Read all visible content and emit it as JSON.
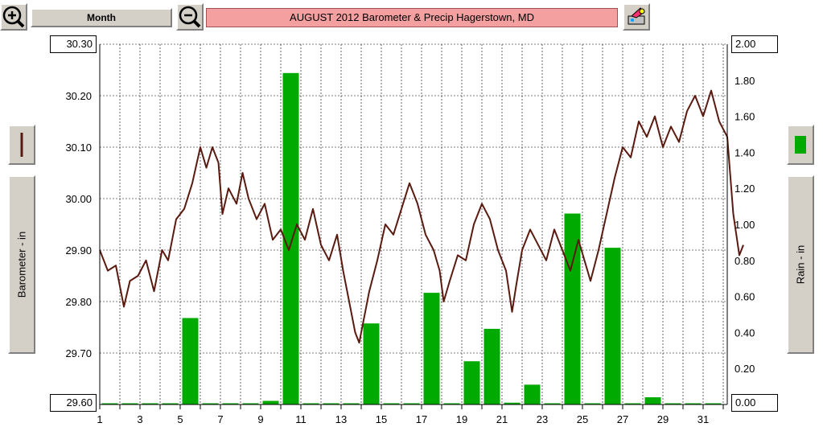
{
  "toolbar": {
    "zoom_in_icon": "zoom-in-icon",
    "zoom_out_icon": "zoom-out-icon",
    "period_label": "Month",
    "title": "AUGUST  2012   Barometer & Precip    Hagerstown, MD",
    "print_icon": "printer-icon"
  },
  "left_panel": {
    "label": "Barometer - in",
    "legend_color": "#5a1a10"
  },
  "right_panel": {
    "label": "Rain - in",
    "legend_color": "#00aa00"
  },
  "axis_boxes": {
    "left_top": "30.30",
    "left_bottom": "29.60",
    "right_top": "2.00",
    "right_bottom": "0.00"
  },
  "chart_data": {
    "type": "bar+line",
    "title": "AUGUST  2012   Barometer & Precip    Hagerstown, MD",
    "xlabel": "",
    "x_ticks": [
      "1",
      "3",
      "5",
      "7",
      "9",
      "11",
      "13",
      "15",
      "17",
      "19",
      "21",
      "23",
      "25",
      "27",
      "29",
      "31"
    ],
    "xlim": [
      1,
      32
    ],
    "left_axis": {
      "label": "Barometer - in",
      "ylim": [
        29.6,
        30.3
      ],
      "ticks": [
        "30.30",
        "30.20",
        "30.10",
        "30.00",
        "29.90",
        "29.80",
        "29.70",
        "29.60"
      ]
    },
    "right_axis": {
      "label": "Rain - in",
      "ylim": [
        0.0,
        2.0
      ],
      "ticks": [
        "2.00",
        "1.80",
        "1.60",
        "1.40",
        "1.20",
        "1.00",
        "0.80",
        "0.60",
        "0.40",
        "0.20",
        "0.00"
      ]
    },
    "grid": true,
    "rain_series": {
      "name": "Rain - in",
      "color": "#00aa00",
      "days": [
        1,
        2,
        3,
        4,
        5,
        6,
        7,
        8,
        9,
        10,
        11,
        12,
        13,
        14,
        15,
        16,
        17,
        18,
        19,
        20,
        21,
        22,
        23,
        24,
        25,
        26,
        27,
        28,
        29,
        30,
        31
      ],
      "values": [
        0,
        0,
        0,
        0,
        0.48,
        0,
        0,
        0,
        0.02,
        1.84,
        0,
        0,
        0,
        0.45,
        0,
        0,
        0.62,
        0,
        0.24,
        0.42,
        0.01,
        0.11,
        0,
        1.06,
        0,
        0.87,
        0,
        0.04,
        0,
        0,
        0
      ]
    },
    "baro_series": {
      "name": "Barometer - in",
      "color": "#5a1a10",
      "points": [
        [
          1.0,
          29.9
        ],
        [
          1.4,
          29.86
        ],
        [
          1.8,
          29.87
        ],
        [
          2.2,
          29.79
        ],
        [
          2.5,
          29.84
        ],
        [
          2.9,
          29.85
        ],
        [
          3.3,
          29.88
        ],
        [
          3.7,
          29.82
        ],
        [
          4.1,
          29.9
        ],
        [
          4.4,
          29.88
        ],
        [
          4.8,
          29.96
        ],
        [
          5.2,
          29.98
        ],
        [
          5.6,
          30.03
        ],
        [
          6.0,
          30.1
        ],
        [
          6.3,
          30.06
        ],
        [
          6.6,
          30.1
        ],
        [
          6.9,
          30.07
        ],
        [
          7.1,
          29.97
        ],
        [
          7.4,
          30.02
        ],
        [
          7.8,
          29.99
        ],
        [
          8.1,
          30.05
        ],
        [
          8.4,
          30.0
        ],
        [
          8.8,
          29.96
        ],
        [
          9.2,
          29.99
        ],
        [
          9.6,
          29.92
        ],
        [
          10.0,
          29.94
        ],
        [
          10.4,
          29.9
        ],
        [
          10.8,
          29.95
        ],
        [
          11.2,
          29.92
        ],
        [
          11.6,
          29.98
        ],
        [
          12.0,
          29.91
        ],
        [
          12.4,
          29.88
        ],
        [
          12.8,
          29.93
        ],
        [
          13.1,
          29.86
        ],
        [
          13.4,
          29.8
        ],
        [
          13.7,
          29.74
        ],
        [
          13.9,
          29.72
        ],
        [
          14.1,
          29.76
        ],
        [
          14.4,
          29.82
        ],
        [
          14.8,
          29.88
        ],
        [
          15.2,
          29.95
        ],
        [
          15.6,
          29.93
        ],
        [
          16.0,
          29.98
        ],
        [
          16.4,
          30.03
        ],
        [
          16.8,
          29.99
        ],
        [
          17.2,
          29.93
        ],
        [
          17.6,
          29.9
        ],
        [
          17.9,
          29.86
        ],
        [
          18.1,
          29.8
        ],
        [
          18.4,
          29.84
        ],
        [
          18.8,
          29.89
        ],
        [
          19.2,
          29.88
        ],
        [
          19.6,
          29.95
        ],
        [
          20.0,
          29.99
        ],
        [
          20.4,
          29.96
        ],
        [
          20.8,
          29.9
        ],
        [
          21.2,
          29.86
        ],
        [
          21.5,
          29.78
        ],
        [
          21.7,
          29.83
        ],
        [
          22.0,
          29.9
        ],
        [
          22.4,
          29.94
        ],
        [
          22.8,
          29.91
        ],
        [
          23.2,
          29.88
        ],
        [
          23.6,
          29.94
        ],
        [
          24.0,
          29.9
        ],
        [
          24.4,
          29.86
        ],
        [
          24.8,
          29.92
        ],
        [
          25.1,
          29.88
        ],
        [
          25.4,
          29.84
        ],
        [
          25.8,
          29.9
        ],
        [
          26.2,
          29.97
        ],
        [
          26.6,
          30.04
        ],
        [
          27.0,
          30.1
        ],
        [
          27.4,
          30.08
        ],
        [
          27.8,
          30.15
        ],
        [
          28.2,
          30.12
        ],
        [
          28.6,
          30.16
        ],
        [
          29.0,
          30.1
        ],
        [
          29.4,
          30.14
        ],
        [
          29.8,
          30.11
        ],
        [
          30.2,
          30.17
        ],
        [
          30.6,
          30.2
        ],
        [
          31.0,
          30.16
        ],
        [
          31.4,
          30.21
        ],
        [
          31.8,
          30.15
        ],
        [
          32.2,
          30.12
        ],
        [
          32.5,
          29.97
        ],
        [
          32.8,
          29.89
        ],
        [
          33.0,
          29.91
        ]
      ]
    }
  }
}
